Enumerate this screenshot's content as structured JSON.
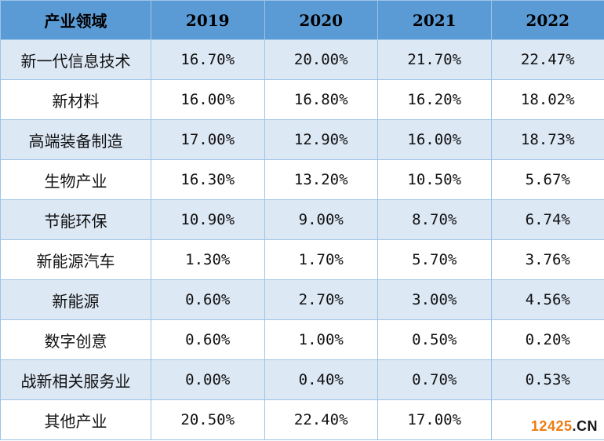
{
  "table": {
    "header": [
      "产业领域",
      "2019",
      "2020",
      "2021",
      "2022"
    ],
    "rows": [
      {
        "label": "新一代信息技术",
        "values": [
          "16.70%",
          "20.00%",
          "21.70%",
          "22.47%"
        ]
      },
      {
        "label": "新材料",
        "values": [
          "16.00%",
          "16.80%",
          "16.20%",
          "18.02%"
        ]
      },
      {
        "label": "高端装备制造",
        "values": [
          "17.00%",
          "12.90%",
          "16.00%",
          "18.73%"
        ]
      },
      {
        "label": "生物产业",
        "values": [
          "16.30%",
          "13.20%",
          "10.50%",
          "5.67%"
        ]
      },
      {
        "label": "节能环保",
        "values": [
          "10.90%",
          "9.00%",
          "8.70%",
          "6.74%"
        ]
      },
      {
        "label": "新能源汽车",
        "values": [
          "1.30%",
          "1.70%",
          "5.70%",
          "3.76%"
        ]
      },
      {
        "label": "新能源",
        "values": [
          "0.60%",
          "2.70%",
          "3.00%",
          "4.56%"
        ]
      },
      {
        "label": "数字创意",
        "values": [
          "0.60%",
          "1.00%",
          "0.50%",
          "0.20%"
        ]
      },
      {
        "label": "战新相关服务业",
        "values": [
          "0.00%",
          "0.40%",
          "0.70%",
          "0.53%"
        ]
      },
      {
        "label": "其他产业",
        "values": [
          "20.50%",
          "22.40%",
          "17.00%",
          ""
        ]
      }
    ]
  },
  "watermark": {
    "number": "12425",
    "dot": ".",
    "suffix": "CN"
  },
  "colors": {
    "header_bg": "#5b9bd5",
    "stripe_bg": "#dde8f5",
    "border": "#9dc3e6",
    "watermark": "#f07b12"
  }
}
